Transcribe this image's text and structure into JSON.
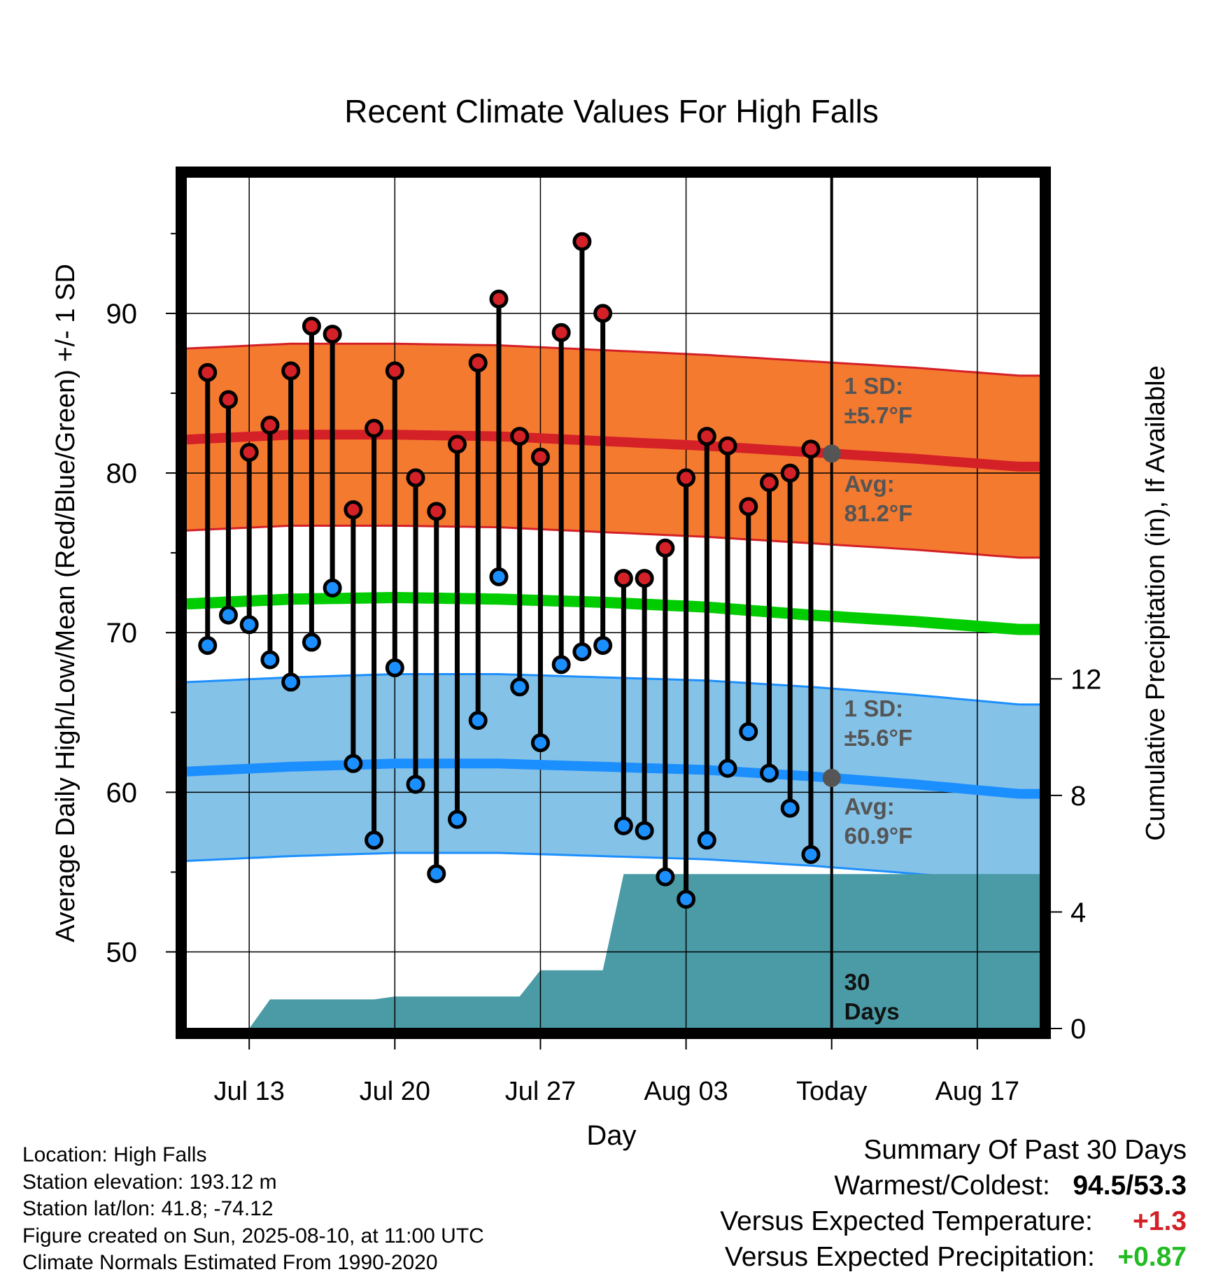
{
  "title": "Recent Climate Values For High Falls",
  "axes": {
    "xlabel": "Day",
    "ylabel_left": "Average Daily High/Low/Mean (Red/Blue/Green) +/- 1 SD",
    "ylabel_right": "Cumulative Precipitation (in), If Available"
  },
  "annotations": {
    "high_sd": [
      "1 SD:",
      "±5.7°F"
    ],
    "high_avg": [
      "Avg:",
      "81.2°F"
    ],
    "low_sd": [
      "1 SD:",
      "±5.6°F"
    ],
    "low_avg": [
      "Avg:",
      "60.9°F"
    ],
    "days": [
      "30",
      "Days"
    ]
  },
  "info": {
    "location": "Location: High Falls",
    "elevation": "Station elevation: 193.12 m",
    "latlon": "Station lat/lon: 41.8; -74.12",
    "created": "Figure created on Sun, 2025-08-10, at 11:00 UTC",
    "normals": "Climate Normals Estimated From 1990-2020"
  },
  "summary": {
    "heading": "Summary Of Past 30 Days",
    "warmest_coldest_label": "Warmest/Coldest:",
    "warmest_coldest_value": "94.5/53.3",
    "temp_label": "Versus Expected Temperature:",
    "temp_value": "+1.3",
    "precip_label": "Versus Expected Precipitation:",
    "precip_value": "+0.87"
  },
  "colors": {
    "high_band": "#F47A30",
    "high_line": "#D42027",
    "low_band": "#85C2E8",
    "low_line": "#1C8FFF",
    "mean_line": "#00CC00",
    "precip_fill": "#4A9BA6",
    "high_dot": "#D42027",
    "low_dot": "#1C8FFF",
    "annotation_text": "#555555",
    "temp_positive": "#D42027",
    "precip_positive": "#22BB22"
  },
  "chart_data": {
    "type": "line",
    "title": "Recent Climate Values For High Falls",
    "xlabel": "Day",
    "ylabel": "Average Daily High/Low/Mean (Red/Blue/Green) +/- 1 SD",
    "ylabel_right": "Cumulative Precipitation (in), If Available",
    "x_ticks": [
      "Jul 13",
      "Jul 20",
      "Jul 27",
      "Aug 03",
      "Today",
      "Aug 17"
    ],
    "x_tick_dates": [
      "2025-07-13",
      "2025-07-20",
      "2025-07-27",
      "2025-08-03",
      "2025-08-10",
      "2025-08-17"
    ],
    "xlim": [
      "2025-07-10",
      "2025-08-20"
    ],
    "ylim": [
      45.2,
      98.5
    ],
    "y_ticks": [
      50,
      60,
      70,
      80,
      90
    ],
    "y2lim": [
      0,
      29.2
    ],
    "y2_ticks": [
      0,
      4,
      8,
      12
    ],
    "grid": true,
    "today": "2025-08-10",
    "dates": [
      "2025-07-11",
      "2025-07-12",
      "2025-07-13",
      "2025-07-14",
      "2025-07-15",
      "2025-07-16",
      "2025-07-17",
      "2025-07-18",
      "2025-07-19",
      "2025-07-20",
      "2025-07-21",
      "2025-07-22",
      "2025-07-23",
      "2025-07-24",
      "2025-07-25",
      "2025-07-26",
      "2025-07-27",
      "2025-07-28",
      "2025-07-29",
      "2025-07-30",
      "2025-07-31",
      "2025-08-01",
      "2025-08-02",
      "2025-08-03",
      "2025-08-04",
      "2025-08-05",
      "2025-08-06",
      "2025-08-07",
      "2025-08-08",
      "2025-08-09"
    ],
    "daily_high": [
      86.3,
      84.6,
      81.3,
      83.0,
      86.4,
      89.2,
      88.7,
      77.7,
      82.8,
      86.4,
      79.7,
      77.6,
      81.8,
      86.9,
      90.9,
      82.3,
      81.0,
      88.8,
      94.5,
      90.0,
      73.4,
      73.4,
      75.3,
      79.7,
      82.3,
      81.7,
      77.9,
      79.4,
      80.0,
      81.5
    ],
    "daily_low": [
      69.2,
      71.1,
      70.5,
      68.3,
      66.9,
      69.4,
      72.8,
      61.8,
      57.0,
      67.8,
      60.5,
      54.9,
      58.3,
      64.5,
      73.5,
      66.6,
      63.1,
      68.0,
      68.8,
      69.2,
      57.9,
      57.6,
      54.7,
      53.3,
      57.0,
      61.5,
      63.8,
      61.2,
      59.0,
      56.1
    ],
    "normals": {
      "dates": [
        "2025-07-10",
        "2025-07-15",
        "2025-07-20",
        "2025-07-25",
        "2025-07-30",
        "2025-08-04",
        "2025-08-09",
        "2025-08-14",
        "2025-08-19"
      ],
      "high_mean": [
        82.1,
        82.4,
        82.4,
        82.3,
        82.0,
        81.7,
        81.3,
        80.9,
        80.4
      ],
      "high_sd": 5.7,
      "low_mean": [
        61.3,
        61.6,
        61.8,
        61.8,
        61.6,
        61.4,
        61.0,
        60.5,
        59.9
      ],
      "low_sd": 5.6,
      "daily_mean": [
        71.8,
        72.1,
        72.2,
        72.1,
        71.9,
        71.6,
        71.1,
        70.7,
        70.2
      ]
    },
    "precip_cumulative": {
      "dates": [
        "2025-07-10",
        "2025-07-13",
        "2025-07-14",
        "2025-07-19",
        "2025-07-20",
        "2025-07-26",
        "2025-07-27",
        "2025-07-30",
        "2025-07-31",
        "2025-08-10",
        "2025-08-20"
      ],
      "values": [
        0,
        0,
        1.0,
        1.0,
        1.1,
        1.1,
        2.0,
        2.0,
        5.3,
        5.3,
        5.3
      ]
    },
    "legend": "none"
  }
}
